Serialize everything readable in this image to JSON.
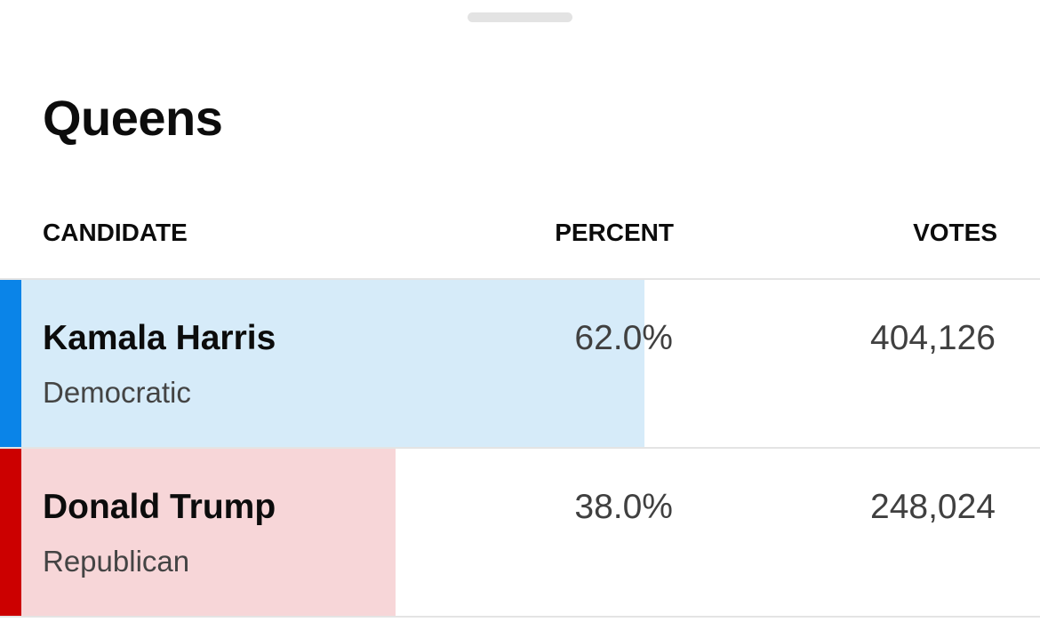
{
  "header": {
    "title": "Queens"
  },
  "table": {
    "columns": [
      "CANDIDATE",
      "PERCENT",
      "VOTES"
    ],
    "rows": [
      {
        "name": "Kamala Harris",
        "party": "Democratic",
        "percent": {
          "value": 62.0,
          "label": "62.0%"
        },
        "votes": "404,126",
        "color": "#0a84e8",
        "fill": "#d6ebf9"
      },
      {
        "name": "Donald Trump",
        "party": "Republican",
        "percent": {
          "value": 38.0,
          "label": "38.0%"
        },
        "votes": "248,024",
        "color": "#cc0000",
        "fill": "#f7d6d8"
      }
    ]
  }
}
